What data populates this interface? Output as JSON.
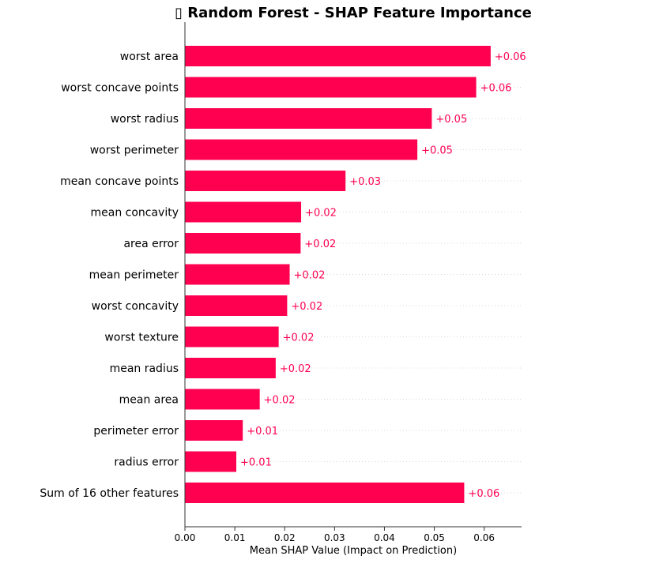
{
  "chart_data": {
    "type": "bar",
    "orientation": "horizontal",
    "title": "▯ Random Forest - SHAP Feature Importance",
    "xlabel": "Mean SHAP Value (Impact on Prediction)",
    "ylabel": "",
    "xlim": [
      0,
      0.0675
    ],
    "xticks": [
      "0.00",
      "0.01",
      "0.02",
      "0.03",
      "0.04",
      "0.05",
      "0.06"
    ],
    "grid": "dotted horizontal lines",
    "bar_color": "#ff0051",
    "categories": [
      "worst area",
      "worst concave points",
      "worst radius",
      "worst perimeter",
      "mean concave points",
      "mean concavity",
      "area error",
      "mean perimeter",
      "worst concavity",
      "worst texture",
      "mean radius",
      "mean area",
      "perimeter error",
      "radius error",
      "Sum of 16 other features"
    ],
    "values": [
      0.0613,
      0.0584,
      0.0495,
      0.0466,
      0.0322,
      0.0233,
      0.0232,
      0.021,
      0.0205,
      0.0188,
      0.0182,
      0.015,
      0.0116,
      0.0103,
      0.056
    ],
    "labels": [
      "+0.06",
      "+0.06",
      "+0.05",
      "+0.05",
      "+0.03",
      "+0.02",
      "+0.02",
      "+0.02",
      "+0.02",
      "+0.02",
      "+0.02",
      "+0.02",
      "+0.01",
      "+0.01",
      "+0.06"
    ]
  }
}
